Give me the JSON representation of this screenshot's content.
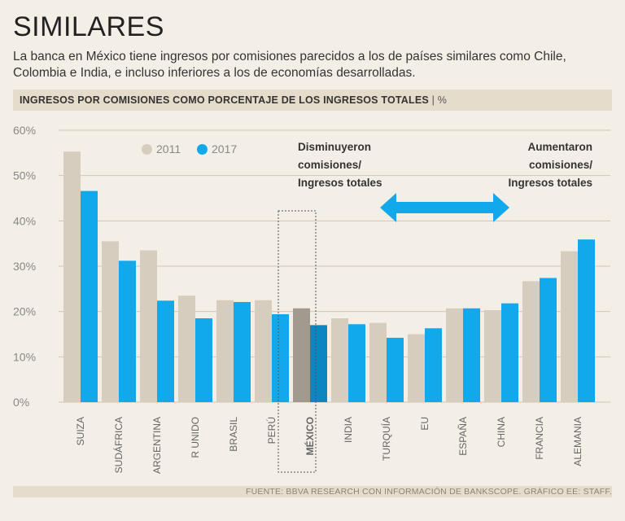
{
  "title": "SIMILARES",
  "subtitle": "La banca en México tiene ingresos por comisiones parecidos a los de países similares como Chile, Colombia e India, e incluso inferiores a los de economías desarrolladas.",
  "colors": {
    "s2011": "#d7cdbf",
    "s2017": "#12a9ec",
    "mexico2011": "#a39a8f",
    "mexico2017": "#0b86c1",
    "grid": "#cfc6b8",
    "arrow": "#12a9ec"
  },
  "annotations": {
    "left": [
      "Disminuyeron",
      "comisiones/",
      "Ingresos totales"
    ],
    "right": [
      "Aumentaron",
      "comisiones/",
      "Ingresos totales"
    ]
  },
  "source": "FUENTE: BBVA RESEARCH CON INFORMACIÓN DE BANKSCOPE. GRÁFICO EE: STAFF.",
  "chart_data": {
    "type": "bar",
    "title": "INGRESOS POR COMISIONES COMO PORCENTAJE DE LOS INGRESOS TOTALES",
    "unit": "%",
    "categories": [
      "SUIZA",
      "SUDÁFRICA",
      "ARGENTINA",
      "R UNIDO",
      "BRASIL",
      "PERÚ",
      "MÉXICO",
      "INDIA",
      "TURQUÍA",
      "EU",
      "ESPAÑA",
      "CHINA",
      "FRANCIA",
      "ALEMANIA"
    ],
    "highlight": "MÉXICO",
    "series": [
      {
        "name": "2011",
        "values": [
          55.3,
          35.5,
          33.5,
          23.5,
          22.5,
          22.5,
          20.7,
          18.5,
          17.5,
          15.0,
          20.7,
          20.3,
          26.7,
          33.3
        ]
      },
      {
        "name": "2017",
        "values": [
          46.6,
          31.2,
          22.4,
          18.5,
          22.1,
          19.4,
          17.0,
          17.2,
          14.2,
          16.3,
          20.7,
          21.8,
          27.4,
          35.9
        ]
      }
    ],
    "yticks": [
      "0%",
      "10%",
      "20%",
      "30%",
      "40%",
      "50%",
      "60%"
    ],
    "ylim": [
      0,
      60
    ],
    "xlabel": "",
    "ylabel": ""
  }
}
